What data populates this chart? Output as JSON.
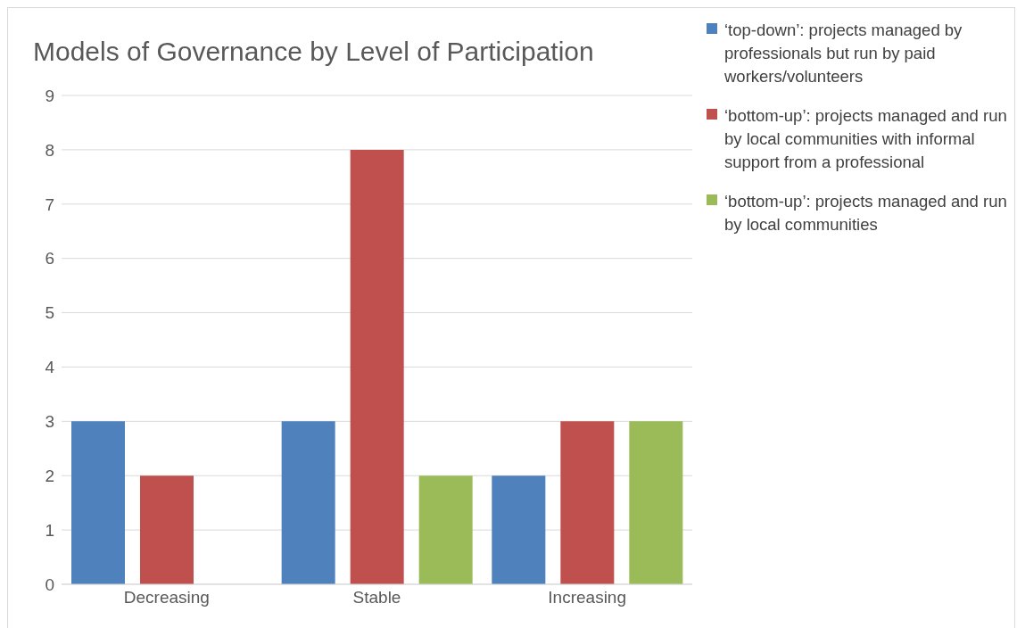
{
  "chart_data": {
    "type": "bar",
    "title": "Models of Governance by Level of Participation",
    "categories": [
      "Decreasing",
      "Stable",
      "Increasing"
    ],
    "series": [
      {
        "name": "‘top-down’: projects managed by professionals but run by paid workers/volunteers",
        "color": "#4f81bd",
        "values": [
          3,
          3,
          2
        ]
      },
      {
        "name": "‘bottom-up’: projects managed and run by local communities with informal support from a professional",
        "color": "#c0504d",
        "values": [
          2,
          8,
          3
        ]
      },
      {
        "name": "‘bottom-up’: projects managed and run by local communities",
        "color": "#9bbb59",
        "values": [
          0,
          2,
          3
        ]
      }
    ],
    "ylim": [
      0,
      9
    ],
    "yticks": [
      0,
      1,
      2,
      3,
      4,
      5,
      6,
      7,
      8,
      9
    ],
    "grid": "y",
    "legend": "top right"
  }
}
